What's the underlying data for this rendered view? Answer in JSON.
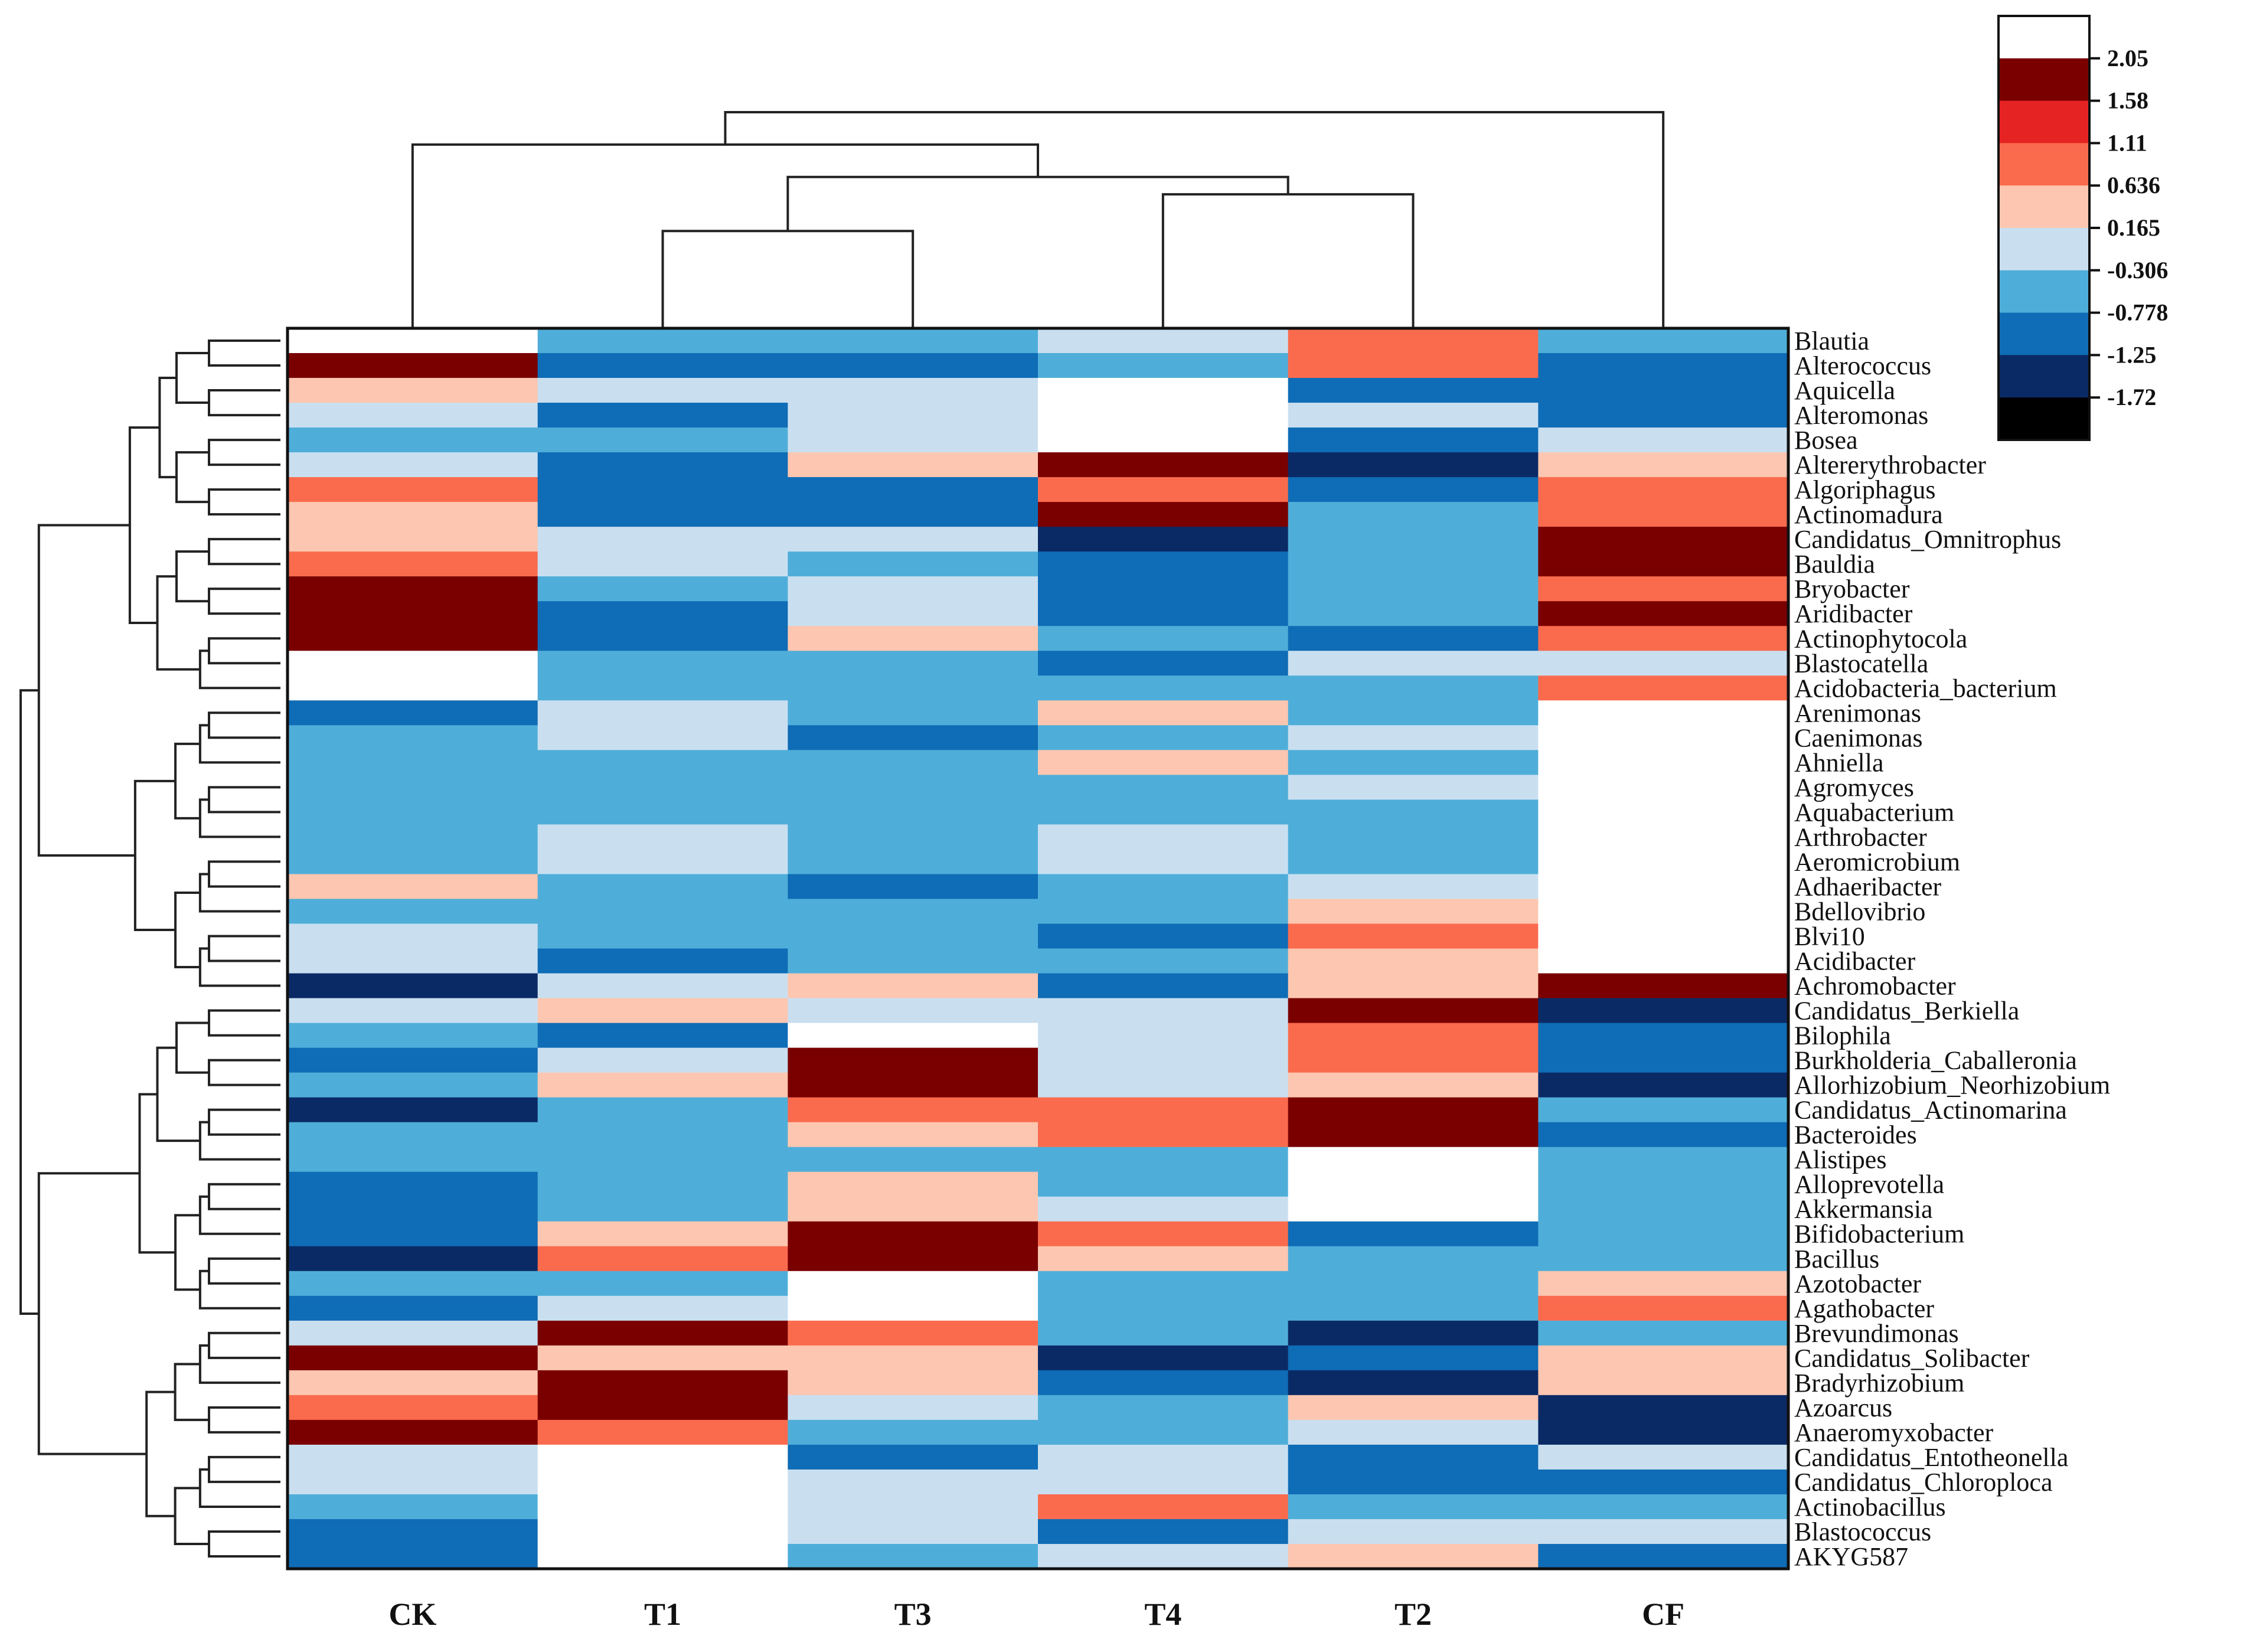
{
  "chart_data": {
    "type": "heatmap",
    "title": "",
    "columns": [
      "CK",
      "T1",
      "T3",
      "T4",
      "T2",
      "CF"
    ],
    "rows": [
      "Blautia",
      "Alterococcus",
      "Aquicella",
      "Alteromonas",
      "Bosea",
      "Altererythrobacter",
      "Algoriphagus",
      "Actinomadura",
      "Candidatus_Omnitrophus",
      "Bauldia",
      "Bryobacter",
      "Aridibacter",
      "Actinophytocola",
      "Blastocatella",
      "Acidobacteria_bacterium",
      "Arenimonas",
      "Caenimonas",
      "Ahniella",
      "Agromyces",
      "Aquabacterium",
      "Arthrobacter",
      "Aeromicrobium",
      "Adhaeribacter",
      "Bdellovibrio",
      "Blvi10",
      "Acidibacter",
      "Achromobacter",
      "Candidatus_Berkiella",
      "Bilophila",
      "Burkholderia_Caballeronia",
      "Allorhizobium_Neorhizobium",
      "Candidatus_Actinomarina",
      "Bacteroides",
      "Alistipes",
      "Alloprevotella",
      "Akkermansia",
      "Bifidobacterium",
      "Bacillus",
      "Azotobacter",
      "Agathobacter",
      "Brevundimonas",
      "Candidatus_Solibacter",
      "Bradyrhizobium",
      "Azoarcus",
      "Anaeromyxobacter",
      "Candidatus_Entotheonella",
      "Candidatus_Chloroploca",
      "Actinobacillus",
      "Blastococcus",
      "AKYG587"
    ],
    "values": [
      [
        2.3,
        -0.6,
        -0.6,
        -0.3,
        0.8,
        -0.6
      ],
      [
        1.8,
        -1.0,
        -1.0,
        -0.6,
        0.8,
        -1.0
      ],
      [
        0.4,
        -0.3,
        -0.3,
        2.3,
        -1.0,
        -1.0
      ],
      [
        -0.3,
        -1.0,
        -0.3,
        2.3,
        -0.3,
        -1.0
      ],
      [
        -0.6,
        -0.6,
        -0.3,
        2.3,
        -1.0,
        -0.3
      ],
      [
        -0.3,
        -1.0,
        0.4,
        1.8,
        -1.5,
        0.4
      ],
      [
        0.8,
        -1.0,
        -1.0,
        0.8,
        -1.0,
        0.8
      ],
      [
        0.4,
        -1.0,
        -1.0,
        1.8,
        -0.6,
        0.8
      ],
      [
        0.4,
        -0.3,
        -0.3,
        -1.5,
        -0.6,
        1.8
      ],
      [
        0.8,
        -0.3,
        -0.6,
        -1.0,
        -0.6,
        1.8
      ],
      [
        1.8,
        -0.6,
        -0.3,
        -1.0,
        -0.6,
        0.8
      ],
      [
        1.8,
        -1.0,
        -0.3,
        -1.0,
        -0.6,
        1.8
      ],
      [
        1.8,
        -1.0,
        0.4,
        -0.6,
        -1.0,
        0.8
      ],
      [
        2.3,
        -0.6,
        -0.6,
        -1.0,
        -0.3,
        -0.3
      ],
      [
        2.3,
        -0.6,
        -0.6,
        -0.6,
        -0.6,
        0.8
      ],
      [
        -1.0,
        -0.3,
        -0.6,
        0.4,
        -0.6,
        2.3
      ],
      [
        -0.6,
        -0.3,
        -1.0,
        -0.6,
        -0.3,
        2.3
      ],
      [
        -0.6,
        -0.6,
        -0.6,
        0.4,
        -0.6,
        2.3
      ],
      [
        -0.6,
        -0.6,
        -0.6,
        -0.6,
        -0.3,
        2.3
      ],
      [
        -0.6,
        -0.6,
        -0.6,
        -0.6,
        -0.6,
        2.3
      ],
      [
        -0.6,
        -0.3,
        -0.6,
        -0.3,
        -0.6,
        2.3
      ],
      [
        -0.6,
        -0.3,
        -0.6,
        -0.3,
        -0.6,
        2.3
      ],
      [
        0.4,
        -0.6,
        -1.0,
        -0.6,
        -0.3,
        2.3
      ],
      [
        -0.6,
        -0.6,
        -0.6,
        -0.6,
        0.4,
        2.3
      ],
      [
        -0.3,
        -0.6,
        -0.6,
        -1.0,
        0.8,
        2.3
      ],
      [
        -0.3,
        -1.0,
        -0.6,
        -0.6,
        0.4,
        2.3
      ],
      [
        -1.5,
        -0.3,
        0.4,
        -1.0,
        0.4,
        1.8
      ],
      [
        -0.3,
        0.4,
        -0.3,
        -0.3,
        1.8,
        -1.5
      ],
      [
        -0.6,
        -1.0,
        2.3,
        -0.3,
        0.8,
        -1.0
      ],
      [
        -1.0,
        -0.3,
        1.8,
        -0.3,
        0.8,
        -1.0
      ],
      [
        -0.6,
        0.4,
        1.8,
        -0.3,
        0.4,
        -1.5
      ],
      [
        -1.5,
        -0.6,
        0.8,
        0.8,
        1.8,
        -0.6
      ],
      [
        -0.6,
        -0.6,
        0.4,
        0.8,
        1.8,
        -1.0
      ],
      [
        -0.6,
        -0.6,
        -0.6,
        -0.6,
        2.3,
        -0.6
      ],
      [
        -1.0,
        -0.6,
        0.4,
        -0.6,
        2.3,
        -0.6
      ],
      [
        -1.0,
        -0.6,
        0.4,
        -0.3,
        2.3,
        -0.6
      ],
      [
        -1.0,
        0.4,
        1.8,
        0.8,
        -1.0,
        -0.6
      ],
      [
        -1.5,
        0.8,
        1.8,
        0.4,
        -0.6,
        -0.6
      ],
      [
        -0.6,
        -0.6,
        2.3,
        -0.6,
        -0.6,
        0.4
      ],
      [
        -1.0,
        -0.3,
        2.3,
        -0.6,
        -0.6,
        0.8
      ],
      [
        -0.3,
        1.8,
        0.8,
        -0.6,
        -1.5,
        -0.6
      ],
      [
        1.8,
        0.4,
        0.4,
        -1.5,
        -1.0,
        0.4
      ],
      [
        0.4,
        1.8,
        0.4,
        -1.0,
        -1.5,
        0.4
      ],
      [
        0.8,
        1.8,
        -0.3,
        -0.6,
        0.4,
        -1.5
      ],
      [
        1.8,
        0.8,
        -0.6,
        -0.6,
        -0.3,
        -1.5
      ],
      [
        -0.3,
        2.3,
        -1.0,
        -0.3,
        -1.0,
        -0.3
      ],
      [
        -0.3,
        2.3,
        -0.3,
        -0.3,
        -1.0,
        -1.0
      ],
      [
        -0.6,
        2.3,
        -0.3,
        0.8,
        -0.6,
        -0.6
      ],
      [
        -1.0,
        2.3,
        -0.3,
        -1.0,
        -0.3,
        -0.3
      ],
      [
        -1.0,
        2.3,
        -0.6,
        -0.3,
        0.4,
        -1.0
      ]
    ],
    "color_scale": {
      "ticks": [
        "2.05",
        "1.58",
        "1.11",
        "0.636",
        "0.165",
        "-0.306",
        "-0.778",
        "-1.25",
        "-1.72"
      ],
      "bins": [
        {
          "min": 2.05,
          "color": "#ffffff"
        },
        {
          "min": 1.58,
          "color": "#7a0000"
        },
        {
          "min": 1.11,
          "color": "#e52322"
        },
        {
          "min": 0.636,
          "color": "#fa6b4e"
        },
        {
          "min": 0.165,
          "color": "#fdc6b0"
        },
        {
          "min": -0.306,
          "color": "#c9dff0"
        },
        {
          "min": -0.778,
          "color": "#4faed9"
        },
        {
          "min": -1.25,
          "color": "#0f6cb6"
        },
        {
          "min": -1.72,
          "color": "#0a2a66"
        },
        {
          "min": -99,
          "color": "#000000"
        }
      ]
    },
    "column_dendrogram": {
      "order": [
        "CK",
        "T1",
        "T3",
        "T4",
        "T2",
        "CF"
      ],
      "merges": [
        [
          1,
          2,
          0.45
        ],
        [
          3,
          4,
          0.62
        ],
        [
          6,
          7,
          0.7
        ],
        [
          0,
          8,
          0.85
        ],
        [
          9,
          5,
          1.0
        ]
      ]
    },
    "row_dendrogram": "hierarchical clustering tree of genera (left side)"
  }
}
